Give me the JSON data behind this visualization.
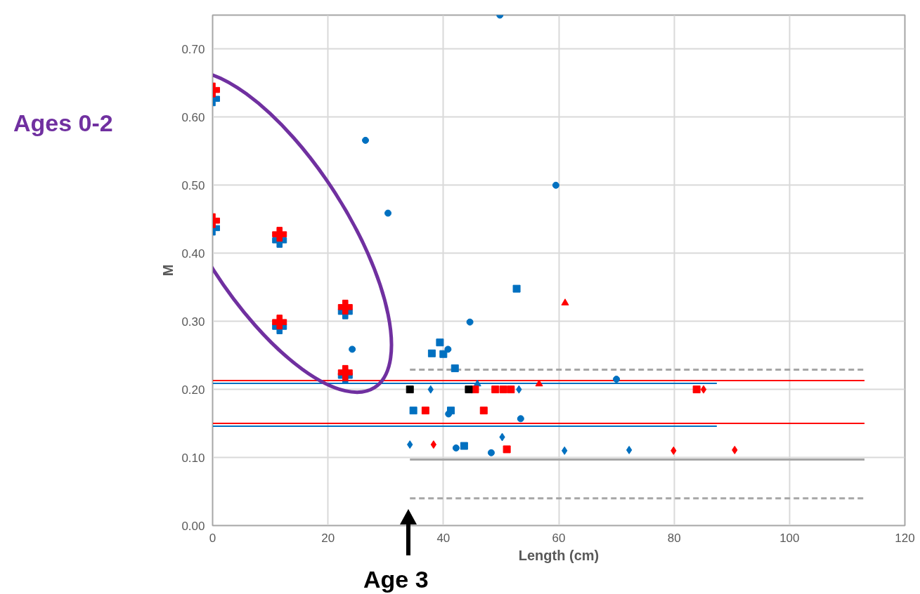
{
  "chart_data": {
    "type": "scatter",
    "xlabel": "Length (cm)",
    "ylabel": "M",
    "annotations": [
      "Ages 0-2",
      "Age 3"
    ],
    "xlim": [
      0,
      120
    ],
    "ylim": [
      0,
      0.75
    ],
    "xticks": [
      0,
      20,
      40,
      60,
      80,
      100,
      120
    ],
    "yticks": [
      {
        "value": 0,
        "label": "0.00"
      },
      {
        "value": 0.1,
        "label": "0.10"
      },
      {
        "value": 0.2,
        "label": "0.20"
      },
      {
        "value": 0.3,
        "label": "0.30"
      },
      {
        "value": 0.4,
        "label": "0.40"
      },
      {
        "value": 0.5,
        "label": "0.50"
      },
      {
        "value": 0.6,
        "label": "0.60"
      },
      {
        "value": 0.7,
        "label": "0.70"
      }
    ],
    "grid": true,
    "series": [
      {
        "marker": "cross",
        "color": "#0070c0",
        "x": [
          0,
          0,
          11.6,
          11.6,
          23.0,
          23.0
        ],
        "values": [
          0.627,
          0.437,
          0.419,
          0.292,
          0.314,
          0.22
        ]
      },
      {
        "marker": "cross",
        "color": "#ff0000",
        "x": [
          0,
          0,
          11.6,
          11.6,
          23.0,
          23.0
        ],
        "values": [
          0.64,
          0.448,
          0.428,
          0.299,
          0.321,
          0.225
        ]
      },
      {
        "type": "line",
        "marker": "none",
        "line_style": "solid",
        "color": "#ff0000",
        "x": [
          0,
          113
        ],
        "values": [
          0.213,
          0.213
        ]
      },
      {
        "type": "line",
        "marker": "none",
        "line_style": "solid",
        "color": "#0070c0",
        "x": [
          0,
          87.4
        ],
        "values": [
          0.209,
          0.209
        ]
      },
      {
        "type": "line",
        "marker": "none",
        "line_style": "solid",
        "color": "#ff0000",
        "x": [
          0,
          113
        ],
        "values": [
          0.15,
          0.15
        ]
      },
      {
        "type": "line",
        "marker": "none",
        "line_style": "solid",
        "color": "#0070c0",
        "x": [
          0,
          87.4
        ],
        "values": [
          0.146,
          0.146
        ]
      },
      {
        "type": "line",
        "marker": "none",
        "line_style": "dashed",
        "color": "#a6a6a6",
        "x": [
          34.2,
          113
        ],
        "values": [
          0.229,
          0.229
        ]
      },
      {
        "type": "line",
        "marker": "none",
        "line_style": "solid",
        "color": "#a6a6a6",
        "x": [
          34.2,
          113
        ],
        "values": [
          0.097,
          0.097
        ]
      },
      {
        "type": "line",
        "marker": "none",
        "line_style": "dashed",
        "color": "#a6a6a6",
        "x": [
          34.2,
          113
        ],
        "values": [
          0.04,
          0.04
        ]
      },
      {
        "marker": "circle",
        "color": "#0070c0",
        "x": [
          26.5,
          30.4,
          24.2,
          49.8,
          59.5,
          44.6,
          40.8,
          40.9,
          42.2,
          48.3,
          53.4,
          70.0
        ],
        "values": [
          0.566,
          0.459,
          0.259,
          0.75,
          0.5,
          0.299,
          0.259,
          0.164,
          0.114,
          0.107,
          0.157,
          0.215
        ]
      },
      {
        "marker": "square",
        "color": "#0070c0",
        "x": [
          52.7,
          39.4,
          38.0,
          40.0,
          42.0,
          34.8,
          41.3,
          43.6
        ],
        "values": [
          0.348,
          0.269,
          0.253,
          0.252,
          0.231,
          0.169,
          0.169,
          0.117
        ]
      },
      {
        "marker": "diamond",
        "color": "#0070c0",
        "x": [
          37.8,
          53.1,
          34.2,
          61.0,
          72.2,
          50.2
        ],
        "values": [
          0.2,
          0.2,
          0.119,
          0.11,
          0.111,
          0.13
        ]
      },
      {
        "marker": "triangle",
        "color": "#0070c0",
        "x": [
          45.9
        ],
        "values": [
          0.208
        ]
      },
      {
        "marker": "square",
        "color": "#ff0000",
        "x": [
          36.9,
          47.0,
          51.0,
          45.5,
          49.0,
          50.4,
          51.7,
          83.9
        ],
        "values": [
          0.169,
          0.169,
          0.112,
          0.2,
          0.2,
          0.2,
          0.2,
          0.2
        ]
      },
      {
        "marker": "diamond",
        "color": "#ff0000",
        "x": [
          38.3,
          85.1,
          79.9,
          90.5
        ],
        "values": [
          0.119,
          0.2,
          0.11,
          0.111
        ]
      },
      {
        "marker": "triangle",
        "color": "#ff0000",
        "x": [
          61.1,
          56.6
        ],
        "values": [
          0.327,
          0.208
        ]
      },
      {
        "marker": "square",
        "color": "#000000",
        "x": [
          34.2,
          44.4
        ],
        "values": [
          0.2,
          0.2
        ]
      }
    ]
  }
}
